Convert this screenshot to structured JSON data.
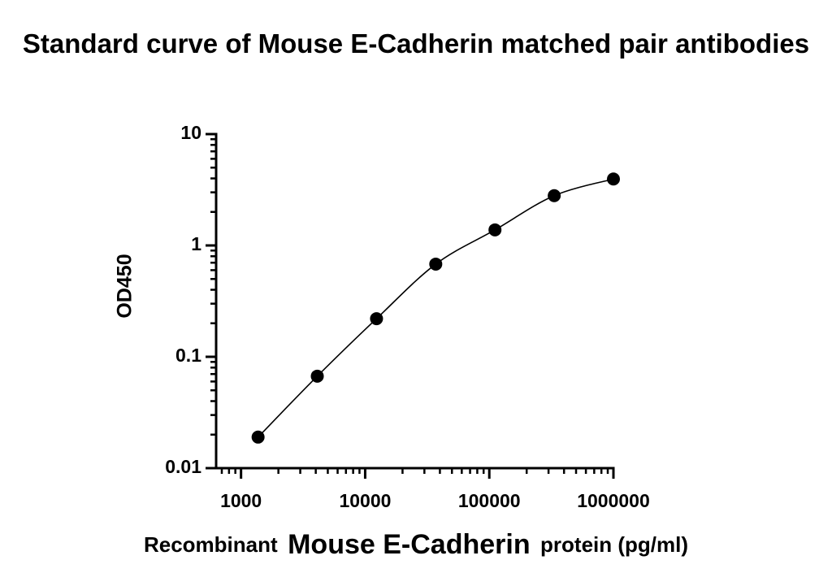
{
  "chart_data": {
    "type": "scatter",
    "title": "Standard curve of Mouse E-Cadherin matched pair antibodies",
    "xlabel": [
      "Recombinant",
      "Mouse E-Cadherin",
      "protein (pg/ml)"
    ],
    "ylabel": "OD450",
    "x": [
      1372,
      4115,
      12346,
      37037,
      111111,
      333333,
      1000000
    ],
    "series": [
      {
        "color": "#000000",
        "values": [
          0.019,
          0.067,
          0.22,
          0.68,
          1.38,
          2.8,
          3.95
        ]
      }
    ],
    "xlim": [
      630,
      1000000
    ],
    "xticks": [
      1000,
      10000,
      100000,
      1000000
    ],
    "ylim": [
      0.01,
      10
    ],
    "yticks": [
      0.01,
      0.1,
      1,
      10
    ],
    "xscale": "log",
    "yscale": "log",
    "grid": false,
    "fit_curve": true
  }
}
